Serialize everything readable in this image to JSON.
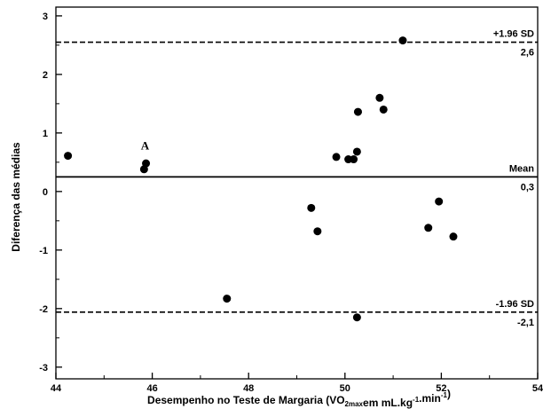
{
  "chart_data": {
    "type": "scatter",
    "title": "",
    "xlabel": {
      "parts": [
        {
          "text": "Desempenho no Teste de Margaria (VO",
          "style": "normal"
        },
        {
          "text": "2max",
          "style": "sub"
        },
        {
          "text": "em mL.kg",
          "style": "normal"
        },
        {
          "text": "-1",
          "style": "sup"
        },
        {
          "text": ".min",
          "style": "normal"
        },
        {
          "text": "-1",
          "style": "sup"
        },
        {
          "text": ")",
          "style": "normal"
        }
      ]
    },
    "ylabel": "Diferença das médias",
    "xlim": [
      44,
      54
    ],
    "ylim": [
      -3.2,
      3.15
    ],
    "xticks": [
      44,
      46,
      48,
      50,
      52,
      54
    ],
    "yticks": [
      -3,
      -2,
      -1,
      0,
      1,
      2,
      3
    ],
    "grid": false,
    "points": [
      {
        "x": 44.25,
        "y": 0.61
      },
      {
        "x": 45.83,
        "y": 0.38
      },
      {
        "x": 45.87,
        "y": 0.48
      },
      {
        "x": 47.55,
        "y": -1.83
      },
      {
        "x": 49.3,
        "y": -0.28
      },
      {
        "x": 49.43,
        "y": -0.68
      },
      {
        "x": 49.82,
        "y": 0.59
      },
      {
        "x": 50.07,
        "y": 0.55
      },
      {
        "x": 50.18,
        "y": 0.55
      },
      {
        "x": 50.25,
        "y": 0.68
      },
      {
        "x": 50.27,
        "y": 1.36
      },
      {
        "x": 50.25,
        "y": -2.15
      },
      {
        "x": 50.72,
        "y": 1.6
      },
      {
        "x": 50.8,
        "y": 1.4
      },
      {
        "x": 51.2,
        "y": 2.58
      },
      {
        "x": 51.73,
        "y": -0.62
      },
      {
        "x": 51.95,
        "y": -0.17
      },
      {
        "x": 52.25,
        "y": -0.77
      }
    ],
    "reference_lines": [
      {
        "name": "+1.96 SD",
        "value_label": "2,6",
        "y": 2.55,
        "style": "dashed"
      },
      {
        "name": "Mean",
        "value_label": "0,3",
        "y": 0.25,
        "style": "solid"
      },
      {
        "name": "-1.96 SD",
        "value_label": "-2,1",
        "y": -2.06,
        "style": "dashed"
      }
    ],
    "annotations": [
      {
        "text": "A",
        "x": 45.85,
        "y": 0.72
      }
    ]
  }
}
